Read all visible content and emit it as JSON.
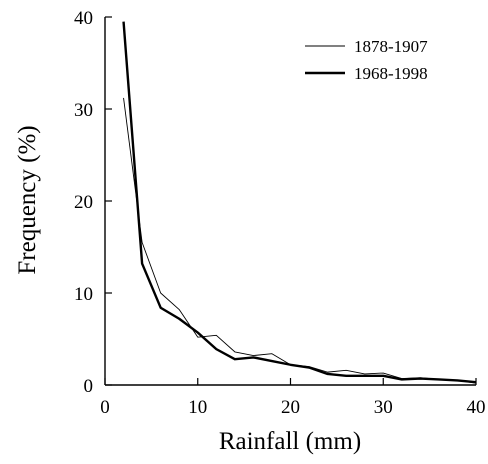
{
  "chart_data": {
    "type": "line",
    "title": "",
    "xlabel": "Rainfall (mm)",
    "ylabel": "Frequency (%)",
    "xlim": [
      0,
      40
    ],
    "ylim": [
      0,
      40
    ],
    "xticks": [
      0,
      10,
      20,
      30,
      40
    ],
    "yticks": [
      0,
      10,
      20,
      30,
      40
    ],
    "grid": false,
    "legend_position": "top-right",
    "series": [
      {
        "name": "1878-1907",
        "line_style": "thin",
        "color": "#000000",
        "x": [
          2,
          4,
          6,
          8,
          10,
          12,
          14,
          16,
          18,
          20,
          22,
          24,
          26,
          28,
          30,
          32,
          34,
          36,
          38,
          40
        ],
        "y": [
          31.2,
          15.5,
          10.0,
          8.2,
          5.2,
          5.4,
          3.6,
          3.2,
          3.4,
          2.2,
          2.0,
          1.4,
          1.6,
          1.2,
          1.3,
          0.7,
          0.8,
          0.6,
          0.5,
          0.2
        ]
      },
      {
        "name": "1968-1998",
        "line_style": "thick",
        "color": "#000000",
        "x": [
          2,
          4,
          6,
          8,
          10,
          12,
          14,
          16,
          18,
          20,
          22,
          24,
          26,
          28,
          30,
          32,
          34,
          36,
          38,
          40
        ],
        "y": [
          39.5,
          13.2,
          8.4,
          7.2,
          5.7,
          3.9,
          2.8,
          3.0,
          2.6,
          2.2,
          1.9,
          1.2,
          1.0,
          1.0,
          1.0,
          0.6,
          0.7,
          0.6,
          0.5,
          0.3
        ]
      }
    ]
  }
}
